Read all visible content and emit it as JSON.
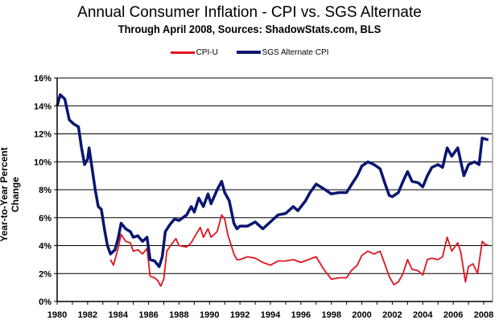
{
  "chart_data": {
    "type": "line",
    "title": "Annual Consumer Inflation - CPI vs. SGS Alternate",
    "subtitle": "Through April 2008, Sources: ShadowStats.com, BLS",
    "xlabel": "",
    "ylabel": "Year-to-Year Percent Change",
    "xlim": [
      1980,
      2008.6
    ],
    "ylim": [
      0,
      16
    ],
    "x_ticks": [
      "1980",
      "1982",
      "1984",
      "1986",
      "1988",
      "1990",
      "1992",
      "1994",
      "1996",
      "1998",
      "2000",
      "2002",
      "2004",
      "2006",
      "2008"
    ],
    "y_ticks": [
      "0%",
      "2%",
      "4%",
      "6%",
      "8%",
      "10%",
      "12%",
      "14%",
      "16%"
    ],
    "grid": "horizontal",
    "legend": "top-center",
    "series": [
      {
        "name": "CPI-U",
        "color": "#e0141e",
        "x": [
          1983.5,
          1983.7,
          1984.0,
          1984.2,
          1984.5,
          1984.8,
          1985.0,
          1985.3,
          1985.6,
          1985.9,
          1986.1,
          1986.4,
          1986.6,
          1986.8,
          1987.0,
          1987.2,
          1987.5,
          1987.8,
          1988.0,
          1988.5,
          1988.8,
          1989.0,
          1989.4,
          1989.6,
          1989.9,
          1990.1,
          1990.5,
          1990.8,
          1991.0,
          1991.2,
          1991.6,
          1991.8,
          1992.0,
          1992.5,
          1993.0,
          1993.5,
          1994.0,
          1994.5,
          1995.0,
          1995.5,
          1996.0,
          1996.5,
          1997.0,
          1997.5,
          1998.0,
          1998.5,
          1999.0,
          1999.3,
          1999.7,
          2000.0,
          2000.4,
          2000.8,
          2001.2,
          2001.5,
          2001.8,
          2002.1,
          2002.4,
          2002.7,
          2003.0,
          2003.3,
          2003.7,
          2004.0,
          2004.3,
          2004.6,
          2005.0,
          2005.3,
          2005.6,
          2005.9,
          2006.3,
          2006.5,
          2006.8,
          2007.0,
          2007.3,
          2007.6,
          2007.9,
          2008.1,
          2008.3
        ],
        "values": [
          3.0,
          2.6,
          3.8,
          4.8,
          4.3,
          4.2,
          3.6,
          3.7,
          3.4,
          3.8,
          1.8,
          1.7,
          1.5,
          1.1,
          1.6,
          3.6,
          4.1,
          4.5,
          4.0,
          3.9,
          4.2,
          4.6,
          5.3,
          4.6,
          5.2,
          4.6,
          5.0,
          6.2,
          5.9,
          4.8,
          3.4,
          3.0,
          3.0,
          3.2,
          3.1,
          2.8,
          2.6,
          2.9,
          2.9,
          3.0,
          2.8,
          3.0,
          3.2,
          2.3,
          1.6,
          1.7,
          1.7,
          2.2,
          2.6,
          3.3,
          3.6,
          3.4,
          3.6,
          2.7,
          1.8,
          1.2,
          1.4,
          2.0,
          3.0,
          2.3,
          2.2,
          1.9,
          3.0,
          3.1,
          3.0,
          3.2,
          4.6,
          3.6,
          4.2,
          3.5,
          1.4,
          2.5,
          2.7,
          2.0,
          4.3,
          4.1,
          4.0
        ]
      },
      {
        "name": "SGS Alternate CPI",
        "color": "#0a1670",
        "x": [
          1980.0,
          1980.2,
          1980.5,
          1980.8,
          1981.1,
          1981.4,
          1981.6,
          1981.8,
          1982.0,
          1982.1,
          1982.3,
          1982.5,
          1982.7,
          1982.9,
          1983.1,
          1983.3,
          1983.5,
          1983.8,
          1984.0,
          1984.2,
          1984.5,
          1984.8,
          1985.0,
          1985.3,
          1985.6,
          1985.9,
          1986.1,
          1986.4,
          1986.7,
          1986.9,
          1987.1,
          1987.4,
          1987.7,
          1988.0,
          1988.5,
          1988.8,
          1989.0,
          1989.3,
          1989.6,
          1989.9,
          1990.1,
          1990.5,
          1990.8,
          1991.0,
          1991.3,
          1991.6,
          1991.8,
          1992.0,
          1992.5,
          1993.0,
          1993.5,
          1994.0,
          1994.5,
          1995.0,
          1995.5,
          1995.8,
          1996.3,
          1996.6,
          1997.0,
          1997.3,
          1997.6,
          1998.0,
          1998.5,
          1999.0,
          1999.4,
          1999.7,
          2000.0,
          2000.4,
          2000.8,
          2001.2,
          2001.5,
          2001.8,
          2002.0,
          2002.4,
          2002.7,
          2003.0,
          2003.3,
          2003.7,
          2004.0,
          2004.3,
          2004.6,
          2005.0,
          2005.3,
          2005.6,
          2005.9,
          2006.3,
          2006.5,
          2006.7,
          2007.0,
          2007.4,
          2007.7,
          2007.9,
          2008.2,
          2008.3
        ],
        "values": [
          14.0,
          14.8,
          14.5,
          13.0,
          12.7,
          12.5,
          11.0,
          9.8,
          10.2,
          11.0,
          9.5,
          8.0,
          6.8,
          6.6,
          5.2,
          4.0,
          3.4,
          3.7,
          4.5,
          5.6,
          5.2,
          5.0,
          4.6,
          4.7,
          4.3,
          4.6,
          3.0,
          2.9,
          2.5,
          3.2,
          5.0,
          5.5,
          5.9,
          5.8,
          6.2,
          6.8,
          6.4,
          7.4,
          6.8,
          7.7,
          7.0,
          8.0,
          8.6,
          7.8,
          7.2,
          5.6,
          5.2,
          5.4,
          5.4,
          5.7,
          5.2,
          5.7,
          6.2,
          6.3,
          6.8,
          6.5,
          7.2,
          7.8,
          8.4,
          8.2,
          8.0,
          7.7,
          7.8,
          7.8,
          8.5,
          9.0,
          9.7,
          10.0,
          9.8,
          9.5,
          8.5,
          7.6,
          7.5,
          7.8,
          8.6,
          9.3,
          8.6,
          8.5,
          8.2,
          9.0,
          9.6,
          9.8,
          9.6,
          11.0,
          10.4,
          11.0,
          10.0,
          9.0,
          9.8,
          10.0,
          9.8,
          11.7,
          11.6,
          11.6
        ]
      }
    ]
  }
}
